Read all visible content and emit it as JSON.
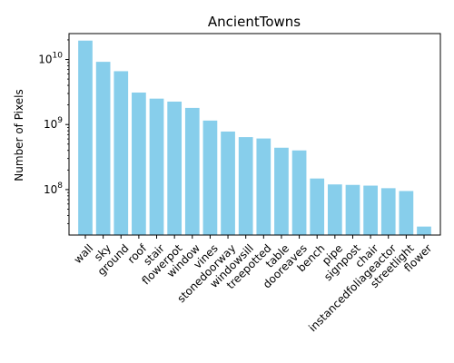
{
  "chart_data": {
    "type": "bar",
    "title": "AncientTowns",
    "xlabel": "",
    "ylabel": "Number of Pixels",
    "yscale": "log",
    "ylim": [
      20000000,
      25000000000
    ],
    "yticks": [
      {
        "value": 100000000,
        "base": "10",
        "exp": "8"
      },
      {
        "value": 1000000000,
        "base": "10",
        "exp": "9"
      },
      {
        "value": 10000000000,
        "base": "10",
        "exp": "10"
      }
    ],
    "bar_color": "#87ceeb",
    "grid": false,
    "categories": [
      "wall",
      "sky",
      "ground",
      "roof",
      "stair",
      "flowerpot",
      "window",
      "vines",
      "stonedoorway",
      "windowsill",
      "treepotted",
      "table",
      "dooreaves",
      "bench",
      "pipe",
      "signpost",
      "chair",
      "instancedfoliageactor",
      "streetlight",
      "flower"
    ],
    "values": [
      19500000000,
      9200000000,
      6600000000,
      3100000000,
      2500000000,
      2250000000,
      1800000000,
      1150000000,
      780000000,
      640000000,
      610000000,
      440000000,
      400000000,
      148000000,
      120000000,
      118000000,
      115000000,
      105000000,
      95000000,
      27000000
    ]
  }
}
